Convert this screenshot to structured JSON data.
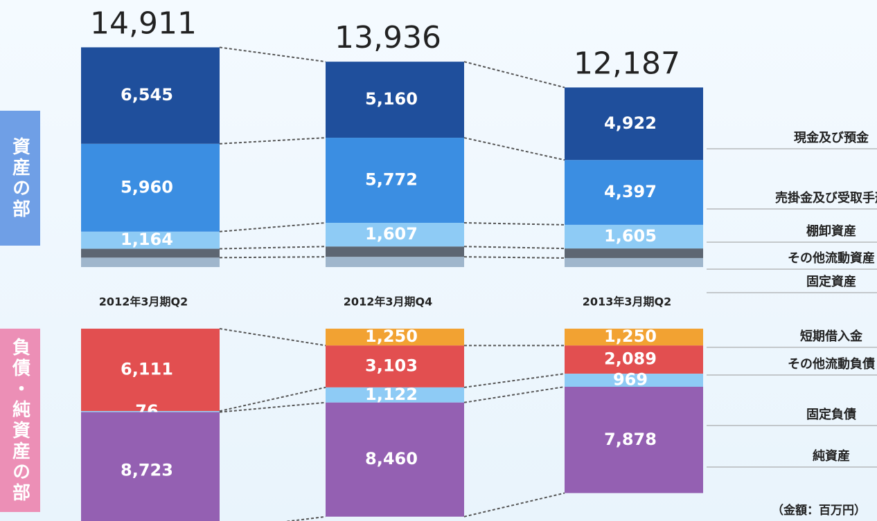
{
  "sections": [
    "資産の部",
    "負債・純資産の部"
  ],
  "unit": "（金額：百万円）",
  "chart_data": [
    {
      "type": "stacked_bar",
      "categories": [
        "2012年3月期Q2",
        "2012年3月期Q4",
        "2013年3月期Q2"
      ],
      "totals": [
        14911,
        13936,
        12187
      ],
      "total_labels": [
        "14,911",
        "13,936",
        "12,187"
      ],
      "series": [
        {
          "name": "固定資産",
          "color": "#9fb6cc",
          "values": [
            642,
            697,
            613
          ],
          "value_labels": [
            null,
            null,
            null
          ]
        },
        {
          "name": "その他流動資産",
          "color": "#5d6672",
          "values": [
            600,
            700,
            650
          ],
          "value_labels": [
            null,
            null,
            null
          ]
        },
        {
          "name": "棚卸資産",
          "color": "#8ecbf5",
          "values": [
            1164,
            1607,
            1605
          ],
          "value_labels": [
            "1,164",
            "1,607",
            "1,605"
          ]
        },
        {
          "name": "売掛金及び受取手形",
          "color": "#3b8ee2",
          "values": [
            5960,
            5772,
            4397
          ],
          "value_labels": [
            "5,960",
            "5,772",
            "4,397"
          ]
        },
        {
          "name": "現金及び預金",
          "color": "#1f4f9c",
          "values": [
            6545,
            5160,
            4922
          ],
          "value_labels": [
            "6,545",
            "5,160",
            "4,922"
          ]
        }
      ]
    },
    {
      "type": "stacked_bar_down",
      "series": [
        {
          "name": "短期借入金",
          "color": "#f2a232",
          "values": [
            null,
            1250,
            1250
          ],
          "value_labels": [
            null,
            "1,250",
            "1,250"
          ]
        },
        {
          "name": "その他流動負債",
          "color": "#e24f50",
          "values": [
            6111,
            3103,
            2089
          ],
          "value_labels": [
            "6,111",
            "3,103",
            "2,089"
          ]
        },
        {
          "name": "固定負債",
          "color": "#8ecbf5",
          "values": [
            76,
            1122,
            969
          ],
          "value_labels": [
            "76",
            "1,122",
            "969"
          ]
        },
        {
          "name": "純資産",
          "color": "#9460b2",
          "values": [
            8723,
            8460,
            7878
          ],
          "value_labels": [
            "8,723",
            "8,460",
            "7,878"
          ]
        }
      ]
    }
  ]
}
